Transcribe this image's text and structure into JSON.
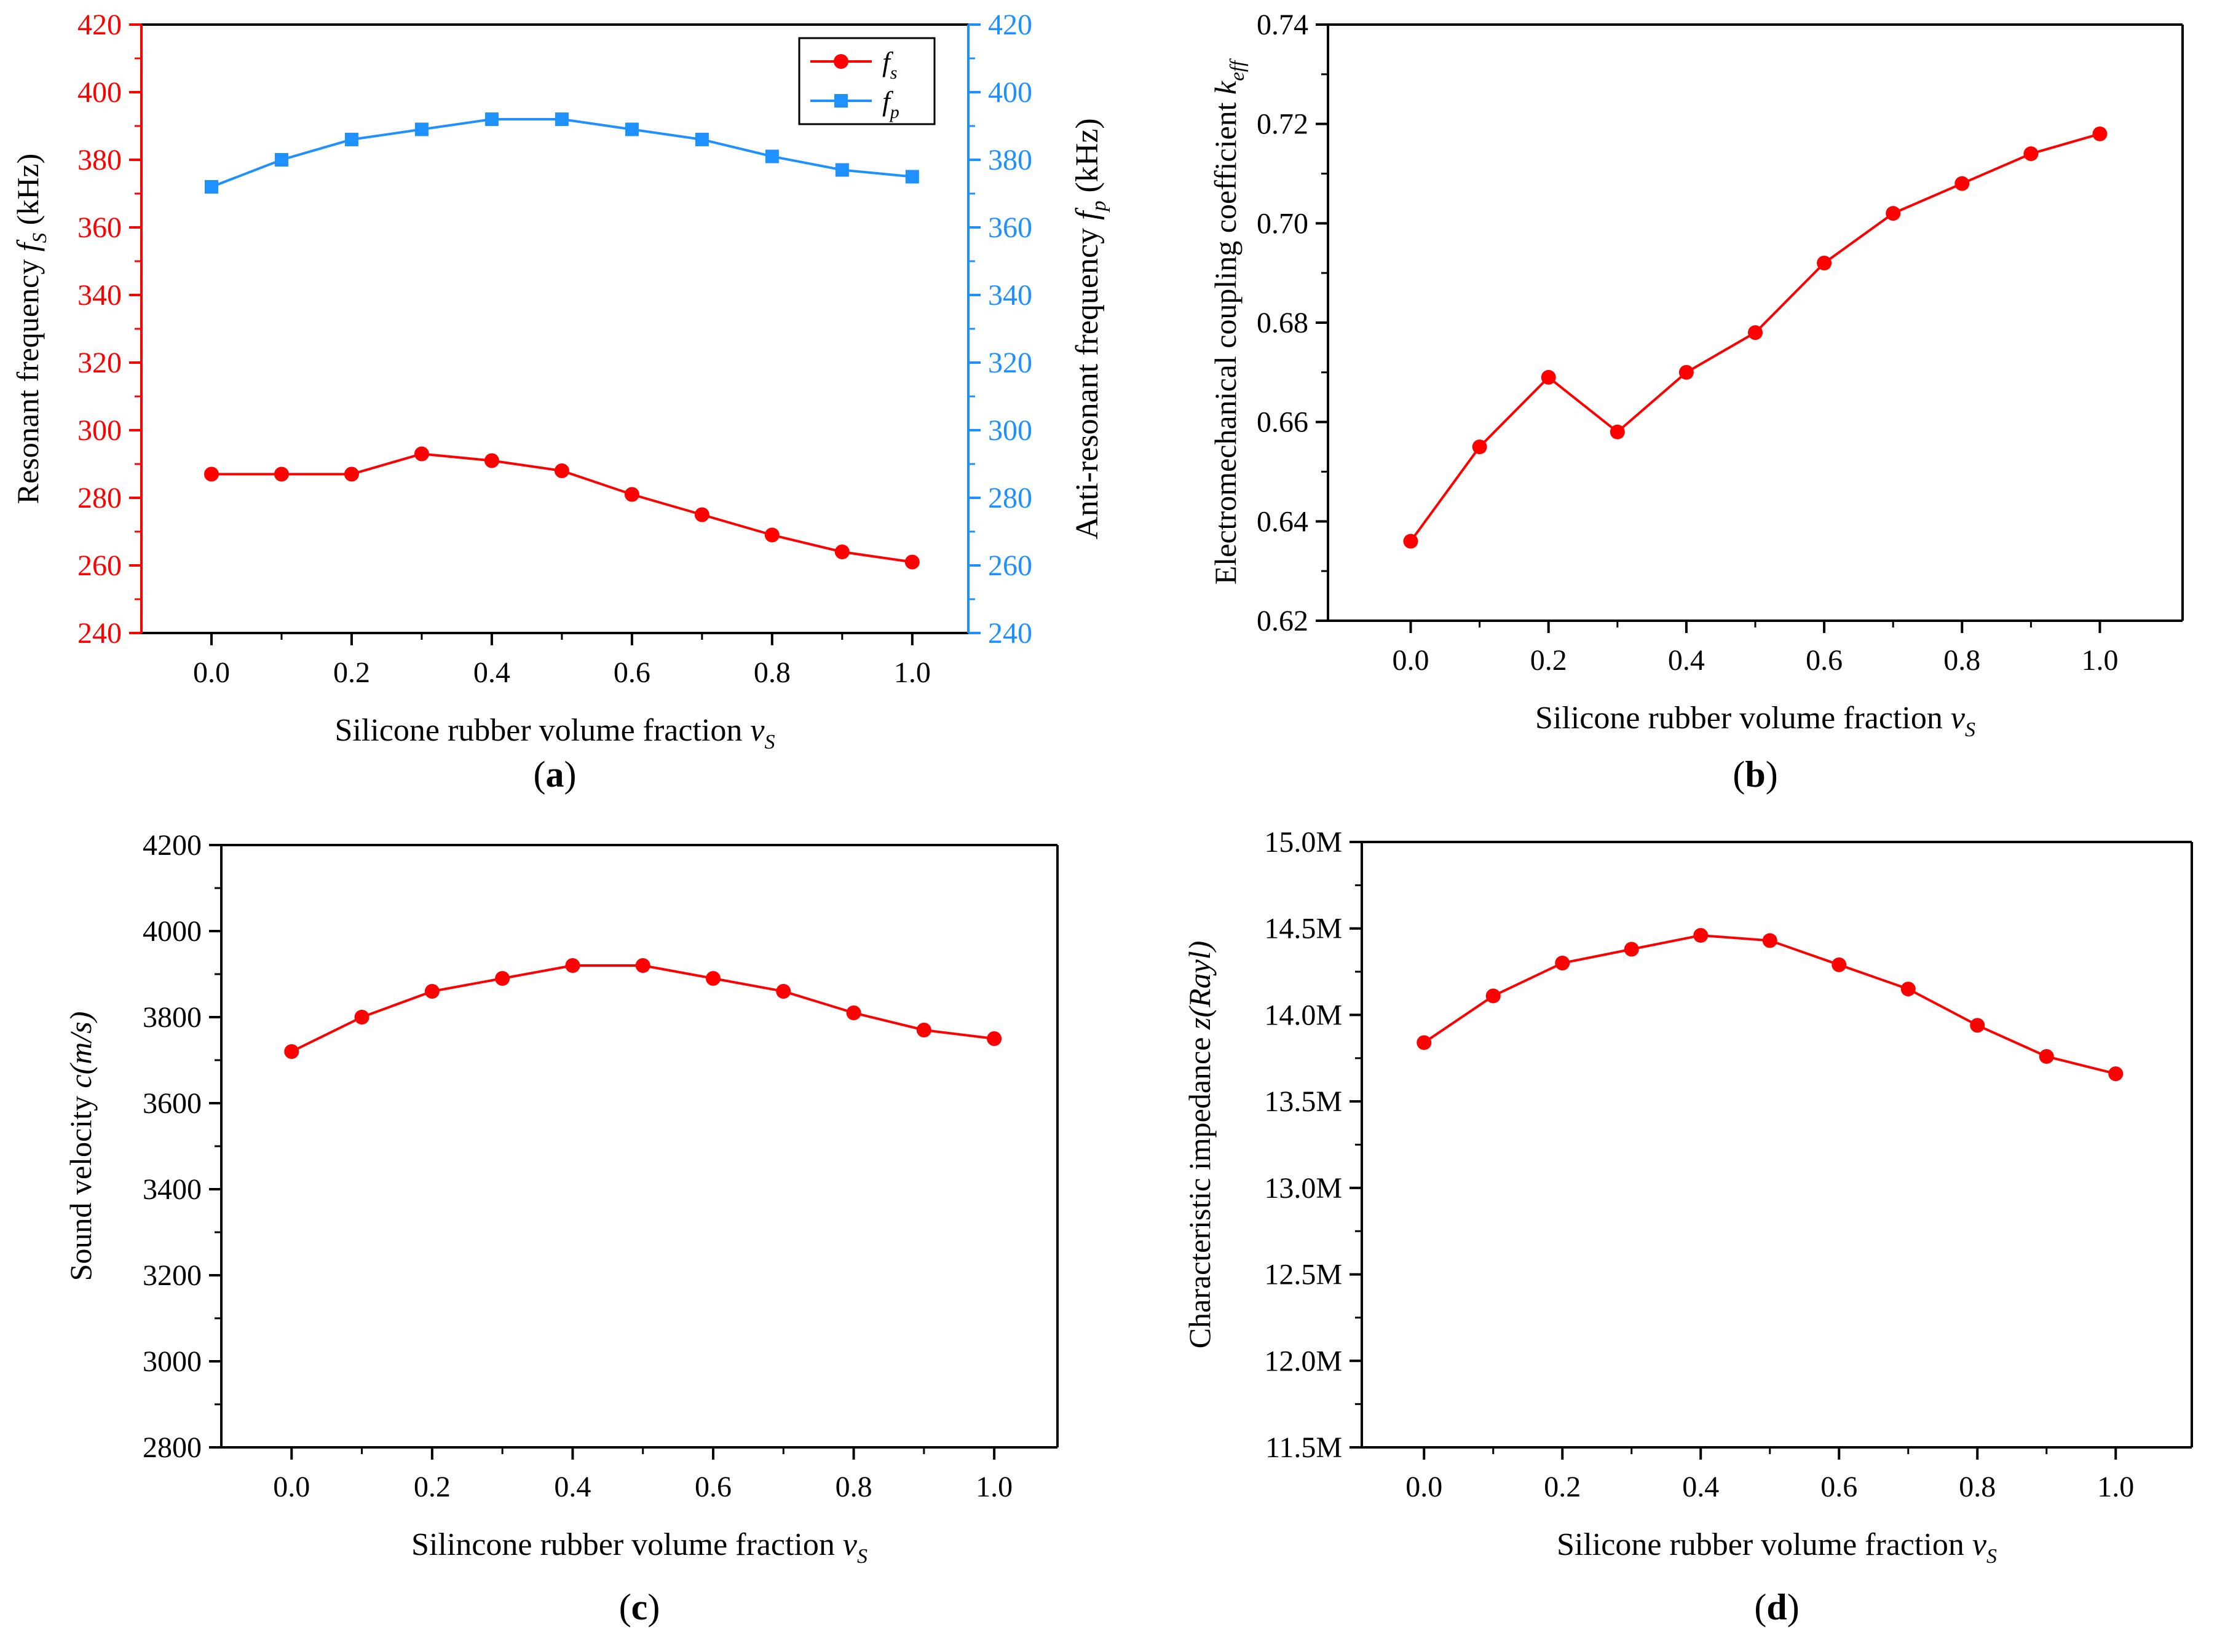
{
  "colors": {
    "red": "#ff0000",
    "blue": "#1e90ff",
    "axis": "#000000"
  },
  "chart_data": [
    {
      "id": "a",
      "panel_label": "a",
      "type": "line",
      "xlabel": "Silicone rubber volume fraction ",
      "xlabel_var": "v",
      "xlabel_sub": "S",
      "ylabel": "Resonant frequency ",
      "ylabel_var": "f",
      "ylabel_sub": "S",
      "ylabel_unit": " (kHz)",
      "y2label": "Anti-resonant frequency ",
      "y2label_var": "f",
      "y2label_sub": "p",
      "y2label_unit": " (kHz)",
      "xlim": [
        -0.1,
        1.08
      ],
      "ylim": [
        240,
        420
      ],
      "y2lim": [
        240,
        420
      ],
      "xticks": [
        "0.0",
        "0.2",
        "0.4",
        "0.6",
        "0.8",
        "1.0"
      ],
      "yticks": [
        "240",
        "260",
        "280",
        "300",
        "320",
        "340",
        "360",
        "380",
        "400",
        "420"
      ],
      "y2ticks": [
        "240",
        "260",
        "280",
        "300",
        "320",
        "340",
        "360",
        "380",
        "400",
        "420"
      ],
      "legend": [
        {
          "var": "f",
          "sub": "s"
        },
        {
          "var": "f",
          "sub": "p"
        }
      ],
      "x": [
        0,
        0.1,
        0.2,
        0.3,
        0.4,
        0.5,
        0.6,
        0.7,
        0.8,
        0.9,
        1.0
      ],
      "series": [
        {
          "name": "fs",
          "axis": "left",
          "color": "#ff0000",
          "marker": "circle",
          "values": [
            287,
            287,
            287,
            293,
            291,
            288,
            281,
            275,
            269,
            264,
            261
          ]
        },
        {
          "name": "fp",
          "axis": "right",
          "color": "#1e90ff",
          "marker": "square",
          "values": [
            372,
            380,
            386,
            389,
            392,
            392,
            389,
            386,
            381,
            377,
            375
          ]
        }
      ]
    },
    {
      "id": "b",
      "panel_label": "b",
      "type": "line",
      "xlabel": "Silicone rubber volume fraction ",
      "xlabel_var": "v",
      "xlabel_sub": "S",
      "ylabel": "Electromechanical coupling coefficient ",
      "ylabel_var": "k",
      "ylabel_sub": "eff",
      "xlim": [
        -0.12,
        1.12
      ],
      "ylim": [
        0.62,
        0.74
      ],
      "xticks": [
        "0.0",
        "0.2",
        "0.4",
        "0.6",
        "0.8",
        "1.0"
      ],
      "yticks": [
        "0.62",
        "0.64",
        "0.66",
        "0.68",
        "0.70",
        "0.72",
        "0.74"
      ],
      "x": [
        0,
        0.1,
        0.2,
        0.3,
        0.4,
        0.5,
        0.6,
        0.7,
        0.8,
        0.9,
        1.0
      ],
      "series": [
        {
          "name": "keff",
          "axis": "left",
          "color": "#ff0000",
          "marker": "circle",
          "values": [
            0.636,
            0.655,
            0.669,
            0.658,
            0.67,
            0.678,
            0.692,
            0.702,
            0.708,
            0.714,
            0.718
          ]
        }
      ]
    },
    {
      "id": "c",
      "panel_label": "c",
      "type": "line",
      "xlabel": "Silincone rubber volume fraction ",
      "xlabel_var": "v",
      "xlabel_sub": "S",
      "ylabel": "Sound velocity ",
      "ylabel_var": "c(m/s)",
      "ylabel_sub": "",
      "xlim": [
        -0.1,
        1.09
      ],
      "ylim": [
        2800,
        4200
      ],
      "xticks": [
        "0.0",
        "0.2",
        "0.4",
        "0.6",
        "0.8",
        "1.0"
      ],
      "yticks": [
        "2800",
        "3000",
        "3200",
        "3400",
        "3600",
        "3800",
        "4000",
        "4200"
      ],
      "x": [
        0,
        0.1,
        0.2,
        0.3,
        0.4,
        0.5,
        0.6,
        0.7,
        0.8,
        0.9,
        1.0
      ],
      "series": [
        {
          "name": "c",
          "axis": "left",
          "color": "#ff0000",
          "marker": "circle",
          "values": [
            3720,
            3800,
            3860,
            3890,
            3920,
            3920,
            3890,
            3860,
            3810,
            3770,
            3750
          ]
        }
      ]
    },
    {
      "id": "d",
      "panel_label": "d",
      "type": "line",
      "xlabel": "Silicone rubber volume fraction ",
      "xlabel_var": "v",
      "xlabel_sub": "S",
      "ylabel": "Characteristic impedance ",
      "ylabel_var": "z(Rayl)",
      "ylabel_sub": "",
      "xlim": [
        -0.09,
        1.11
      ],
      "ylim": [
        11.5,
        15.0
      ],
      "xticks": [
        "0.0",
        "0.2",
        "0.4",
        "0.6",
        "0.8",
        "1.0"
      ],
      "yticks": [
        "11.5M",
        "12.0M",
        "12.5M",
        "13.0M",
        "13.5M",
        "14.0M",
        "14.5M",
        "15.0M"
      ],
      "x": [
        0,
        0.1,
        0.2,
        0.3,
        0.4,
        0.5,
        0.6,
        0.7,
        0.8,
        0.9,
        1.0
      ],
      "series": [
        {
          "name": "z",
          "axis": "left",
          "color": "#ff0000",
          "marker": "circle",
          "values": [
            13.84,
            14.11,
            14.3,
            14.38,
            14.46,
            14.43,
            14.29,
            14.15,
            13.94,
            13.76,
            13.66
          ]
        }
      ]
    }
  ]
}
